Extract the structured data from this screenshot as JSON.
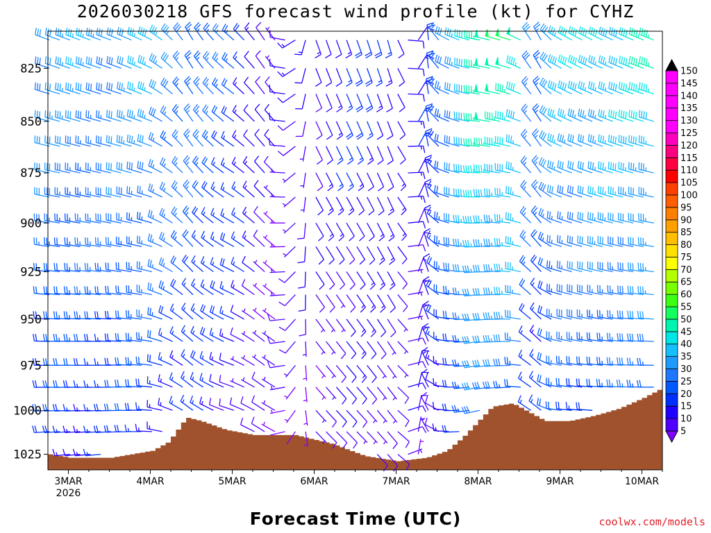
{
  "title": "2026030218 GFS forecast wind profile (kt) for CYHZ",
  "xlabel": "Forecast Time (UTC)",
  "credit": "coolwx.com/models",
  "colors": {
    "terrain": "#a0522d",
    "scale": [
      "#8000ff",
      "#5000ff",
      "#2000ff",
      "#0030ff",
      "#0058ff",
      "#1e78ff",
      "#1e9bff",
      "#14c0ff",
      "#00e6e6",
      "#00f5b0",
      "#14ff60",
      "#3cff14",
      "#78ff00",
      "#b4ff00",
      "#ffff00",
      "#ffe000",
      "#ffbf00",
      "#ff9f00",
      "#ff7f00",
      "#ff5f00",
      "#ff3f00",
      "#ff0000",
      "#ff0040",
      "#ff0080",
      "#ff00c0",
      "#ff00ff",
      "#ff00ff"
    ]
  },
  "chart_data": {
    "type": "wind-barb time-height",
    "title": "2026030218 GFS forecast wind profile (kt) for CYHZ",
    "xlabel": "Forecast Time (UTC)",
    "ylabel": "",
    "x_ticks": [
      "3MAR",
      "4MAR",
      "5MAR",
      "6MAR",
      "7MAR",
      "8MAR",
      "9MAR",
      "10MAR"
    ],
    "x_year_label": "2026",
    "x_range_days": [
      2.75,
      10.25
    ],
    "y_ticks": [
      825,
      850,
      875,
      900,
      925,
      950,
      975,
      1000,
      1025
    ],
    "y_range_hpa": [
      808,
      1034
    ],
    "colorbar": {
      "units": "kt",
      "ticks": [
        5,
        10,
        15,
        20,
        25,
        30,
        35,
        40,
        45,
        50,
        55,
        60,
        65,
        70,
        75,
        80,
        85,
        90,
        95,
        100,
        105,
        110,
        115,
        120,
        125,
        130,
        135,
        140,
        145,
        150
      ]
    },
    "wind_levels_hpa": [
      812,
      825,
      837,
      850,
      862,
      875,
      887,
      900,
      912,
      925,
      937,
      950,
      962,
      975,
      987,
      1000,
      1012,
      1025
    ],
    "wind_keyframes": [
      {
        "day": 2.75,
        "dir": 290,
        "base_kt": 34
      },
      {
        "day": 3.5,
        "dir": 290,
        "base_kt": 33
      },
      {
        "day": 4.0,
        "dir": 295,
        "base_kt": 36
      },
      {
        "day": 4.5,
        "dir": 330,
        "base_kt": 28
      },
      {
        "day": 5.0,
        "dir": 310,
        "base_kt": 22
      },
      {
        "day": 5.5,
        "dir": 330,
        "base_kt": 8
      },
      {
        "day": 6.0,
        "dir": 160,
        "base_kt": 12
      },
      {
        "day": 6.5,
        "dir": 160,
        "base_kt": 18
      },
      {
        "day": 7.0,
        "dir": 165,
        "base_kt": 14
      },
      {
        "day": 7.3,
        "dir": 20,
        "base_kt": 14
      },
      {
        "day": 7.6,
        "dir": 300,
        "base_kt": 26
      },
      {
        "day": 8.0,
        "dir": 280,
        "base_kt": 50
      },
      {
        "day": 8.5,
        "dir": 290,
        "base_kt": 48
      },
      {
        "day": 8.7,
        "dir": 340,
        "base_kt": 25
      },
      {
        "day": 9.0,
        "dir": 300,
        "base_kt": 38
      },
      {
        "day": 10.25,
        "dir": 290,
        "base_kt": 45
      }
    ],
    "terrain_surface_hpa": [
      {
        "day": 2.75,
        "p": 1025
      },
      {
        "day": 3.0,
        "p": 1027
      },
      {
        "day": 3.5,
        "p": 1027
      },
      {
        "day": 4.0,
        "p": 1023
      },
      {
        "day": 4.2,
        "p": 1018
      },
      {
        "day": 4.42,
        "p": 1004
      },
      {
        "day": 4.6,
        "p": 1006
      },
      {
        "day": 4.9,
        "p": 1011
      },
      {
        "day": 5.25,
        "p": 1014
      },
      {
        "day": 5.75,
        "p": 1014
      },
      {
        "day": 6.2,
        "p": 1019
      },
      {
        "day": 6.6,
        "p": 1026
      },
      {
        "day": 7.0,
        "p": 1029
      },
      {
        "day": 7.35,
        "p": 1027
      },
      {
        "day": 7.6,
        "p": 1023
      },
      {
        "day": 7.8,
        "p": 1015
      },
      {
        "day": 8.15,
        "p": 998
      },
      {
        "day": 8.4,
        "p": 996
      },
      {
        "day": 8.8,
        "p": 1006
      },
      {
        "day": 9.1,
        "p": 1006
      },
      {
        "day": 9.4,
        "p": 1003
      },
      {
        "day": 9.7,
        "p": 999
      },
      {
        "day": 10.0,
        "p": 993
      },
      {
        "day": 10.25,
        "p": 987
      }
    ]
  }
}
